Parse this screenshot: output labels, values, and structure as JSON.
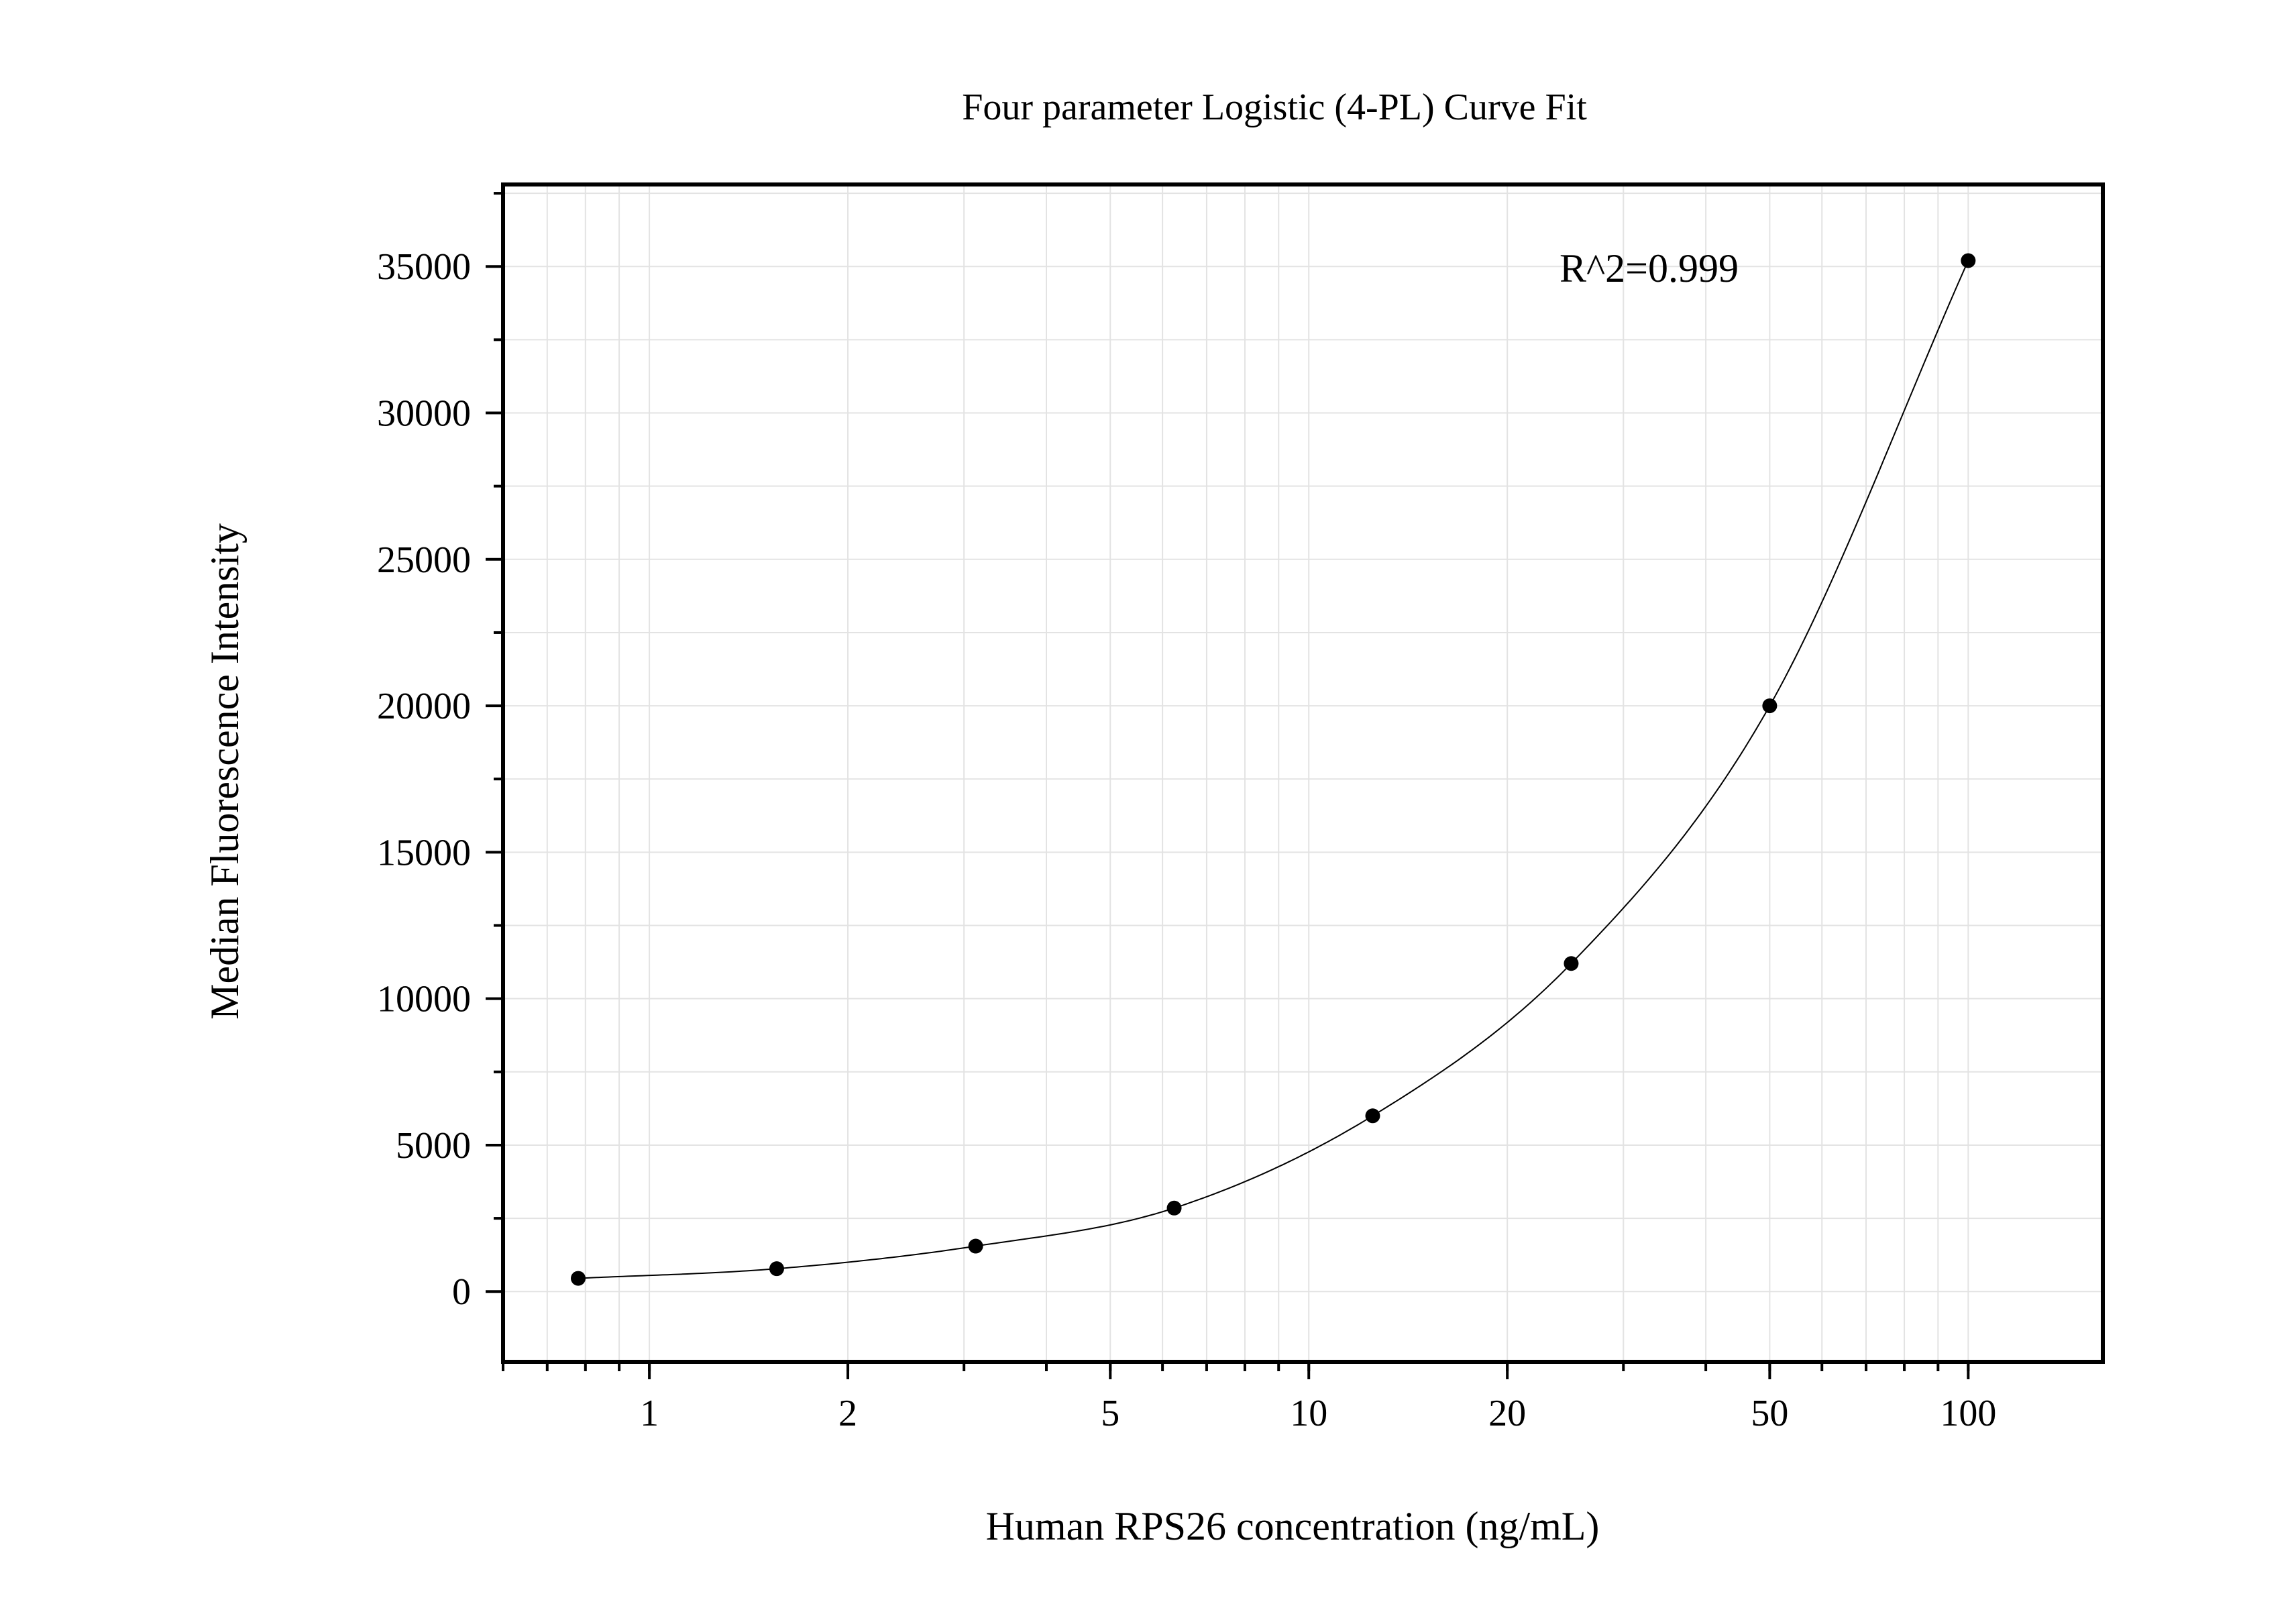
{
  "chart_data": {
    "type": "scatter",
    "title": "Four parameter Logistic (4-PL) Curve Fit",
    "xlabel": "Human RPS26 concentration (ng/mL)",
    "ylabel": "Median Fluorescence Intensity",
    "x_scale": "log",
    "xlim": [
      0.6,
      160
    ],
    "ylim": [
      -2400,
      37800
    ],
    "x_ticks": [
      1,
      2,
      5,
      10,
      20,
      50,
      100
    ],
    "x_tick_labels": [
      "1",
      "2",
      "5",
      "10",
      "20",
      "50",
      "100"
    ],
    "y_ticks": [
      0,
      5000,
      10000,
      15000,
      20000,
      25000,
      30000,
      35000
    ],
    "y_tick_labels": [
      "0",
      "5000",
      "10000",
      "15000",
      "20000",
      "25000",
      "30000",
      "35000"
    ],
    "grid": true,
    "annotation": "R^2=0.999",
    "points": {
      "x": [
        0.78,
        1.56,
        3.125,
        6.25,
        12.5,
        25,
        50,
        100
      ],
      "y": [
        450,
        780,
        1550,
        2850,
        6000,
        11200,
        20000,
        35200
      ]
    },
    "fit": {
      "model": "4PL",
      "x_range": [
        0.78,
        100
      ]
    }
  }
}
